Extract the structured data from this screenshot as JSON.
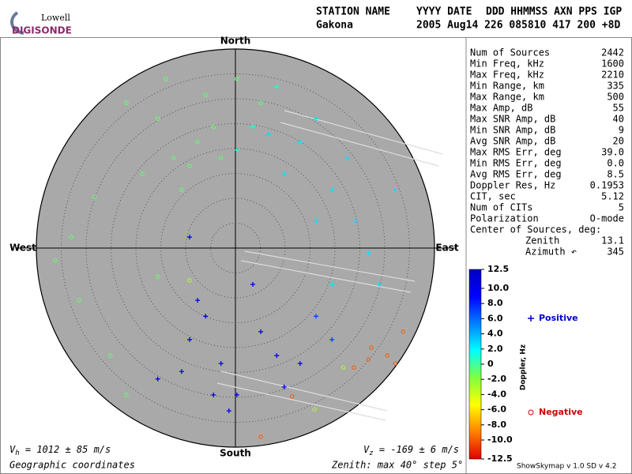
{
  "header": {
    "logo_top": "Lowell",
    "logo_bottom": "DIGISONDE",
    "labels": [
      "STATION NAME",
      "YYYY DATE",
      "DDD HHMMSS AXN PPS IGP"
    ],
    "station": "Gakona",
    "values": "2005 Aug14 226 085810 417 200 +8D"
  },
  "stats": {
    "rows": [
      [
        "Num of Sources",
        "2442"
      ],
      [
        "Min Freq, kHz",
        "1600"
      ],
      [
        "Max Freq, kHz",
        "2210"
      ],
      [
        "Min Range, km",
        "335"
      ],
      [
        "Max Range, km",
        "500"
      ],
      [
        "Max Amp, dB",
        "55"
      ],
      [
        "Max SNR Amp, dB",
        "40"
      ],
      [
        "Min SNR Amp, dB",
        "9"
      ],
      [
        "Avg SNR Amp, dB",
        "20"
      ],
      [
        "Max RMS Err, deg",
        "39.0"
      ],
      [
        "Min RMS Err, deg",
        "0.0"
      ],
      [
        "Avg RMS Err, deg",
        "8.5"
      ],
      [
        "Doppler Res, Hz",
        "0.1953"
      ],
      [
        "CIT, sec",
        "5.12"
      ],
      [
        "Num of CITs",
        "5"
      ],
      [
        "Polarization",
        "O-mode"
      ]
    ],
    "center_title": "Center of Sources, deg:",
    "center_rows": [
      [
        "Zenith",
        "13.1"
      ],
      [
        "Azimuth ↶",
        "345"
      ]
    ]
  },
  "footer": {
    "vh": {
      "symbol": "V",
      "sub": "h",
      "text": " = 1012 ± 85 m/s"
    },
    "vz": {
      "symbol": "V",
      "sub": "z",
      "text": " = -169 ± 6 m/s"
    },
    "coords": "Geographic coordinates",
    "zenith": "Zenith: max 40° step 5°",
    "version": "ShowSkymap v 1.0  SD v 4.2"
  },
  "chart_data": {
    "type": "skymap",
    "directions": {
      "north": "North",
      "south": "South",
      "east": "East",
      "west": "West"
    },
    "xlim": [
      -40,
      40
    ],
    "ylim": [
      -40,
      40
    ],
    "rticks": [
      5,
      10,
      15,
      20,
      25,
      30,
      35
    ],
    "x": [
      -7.6,
      -12.4,
      -4.4,
      -15.6,
      -21.9,
      -28.3,
      -33,
      -31.4,
      -25.1,
      -21.9,
      -10.8,
      -18.7,
      0.3,
      5.1,
      -6,
      -15.6,
      -36.2,
      -14,
      -9.2,
      -2.9,
      13,
      19.4,
      9.8,
      16.2,
      24.1,
      26.8,
      16.2,
      6.7,
      22.5,
      28.9,
      19.4,
      32.1,
      3.5,
      8.3,
      0.3,
      -6,
      -9.2,
      -2.9,
      0.3,
      5.1,
      8.3,
      13,
      -10.8,
      -4.4,
      3.5,
      -9.2,
      -15.6,
      9.8,
      -1.3,
      -7.6,
      16.2,
      19.4,
      27.3,
      30.5,
      26.7,
      32.1,
      33.7,
      23.8,
      5.1,
      11.4,
      -9.2,
      21.7,
      15.9
    ],
    "y": [
      21.3,
      18.1,
      24.4,
      26,
      29.2,
      10.2,
      2.2,
      -10.5,
      -21.6,
      -29.5,
      11.7,
      14.9,
      34,
      29.2,
      30.8,
      -5.7,
      -2.5,
      34,
      16.5,
      18.1,
      21.3,
      11.7,
      14.9,
      5.4,
      5.4,
      -1,
      26,
      22.9,
      18.1,
      -7.3,
      -7.3,
      11.7,
      24.4,
      32.4,
      19.7,
      -13.7,
      -18.4,
      -23.2,
      -29.5,
      -16.8,
      -21.6,
      -23.2,
      -24.8,
      -29.5,
      -7.3,
      2.2,
      -26.3,
      -27.9,
      -32.7,
      -10.5,
      -13.7,
      -18.4,
      -20,
      -21.6,
      -22.4,
      -23.2,
      -16.8,
      -24,
      -37.9,
      -29.8,
      -6.5,
      -24,
      -32.4
    ],
    "doppler": [
      -1,
      -1,
      -1,
      -1,
      -1,
      -1,
      -1,
      -1,
      -1,
      -1,
      -1,
      -1,
      -1,
      -1,
      -1,
      -1,
      -1,
      -1,
      -1,
      -1,
      2.5,
      2.5,
      2.5,
      2.5,
      2.5,
      2.5,
      2.5,
      2.5,
      2.5,
      2.5,
      2.5,
      2.5,
      1,
      1,
      1,
      10,
      10,
      10,
      10,
      10,
      10,
      10,
      10,
      10,
      10,
      10,
      10,
      10,
      10,
      10,
      7,
      7,
      -10,
      -10,
      -10,
      -10,
      -10,
      -10,
      -10,
      -10,
      -3,
      -3,
      -3
    ],
    "colorbar": {
      "title": "Doppler, Hz",
      "clim": [
        -12.5,
        12.5
      ],
      "colors": [
        "#e00000",
        "#ff8000",
        "#ffff00",
        "#80ff40",
        "#00ffff",
        "#0080ff",
        "#0000ff",
        "#0000c0"
      ],
      "ticks": [
        12.5,
        {
          "value": 10,
          "label": "10.0"
        },
        {
          "value": 8,
          "label": "8.0"
        },
        {
          "value": 6,
          "label": "6.0"
        },
        {
          "value": 4,
          "label": "4.0"
        },
        {
          "value": 2,
          "label": "2.0"
        },
        0,
        {
          "value": -2,
          "label": "-2.0"
        },
        {
          "value": -4,
          "label": "-4.0"
        },
        {
          "value": -6,
          "label": "-6.0"
        },
        {
          "value": -8,
          "label": "-8.0"
        },
        {
          "value": -10,
          "label": "-10.0"
        },
        -12.5
      ]
    },
    "legend": [
      {
        "name": "Positive",
        "color": "#0000cc"
      },
      {
        "name": "Negative",
        "color": "#cc0000"
      }
    ]
  }
}
